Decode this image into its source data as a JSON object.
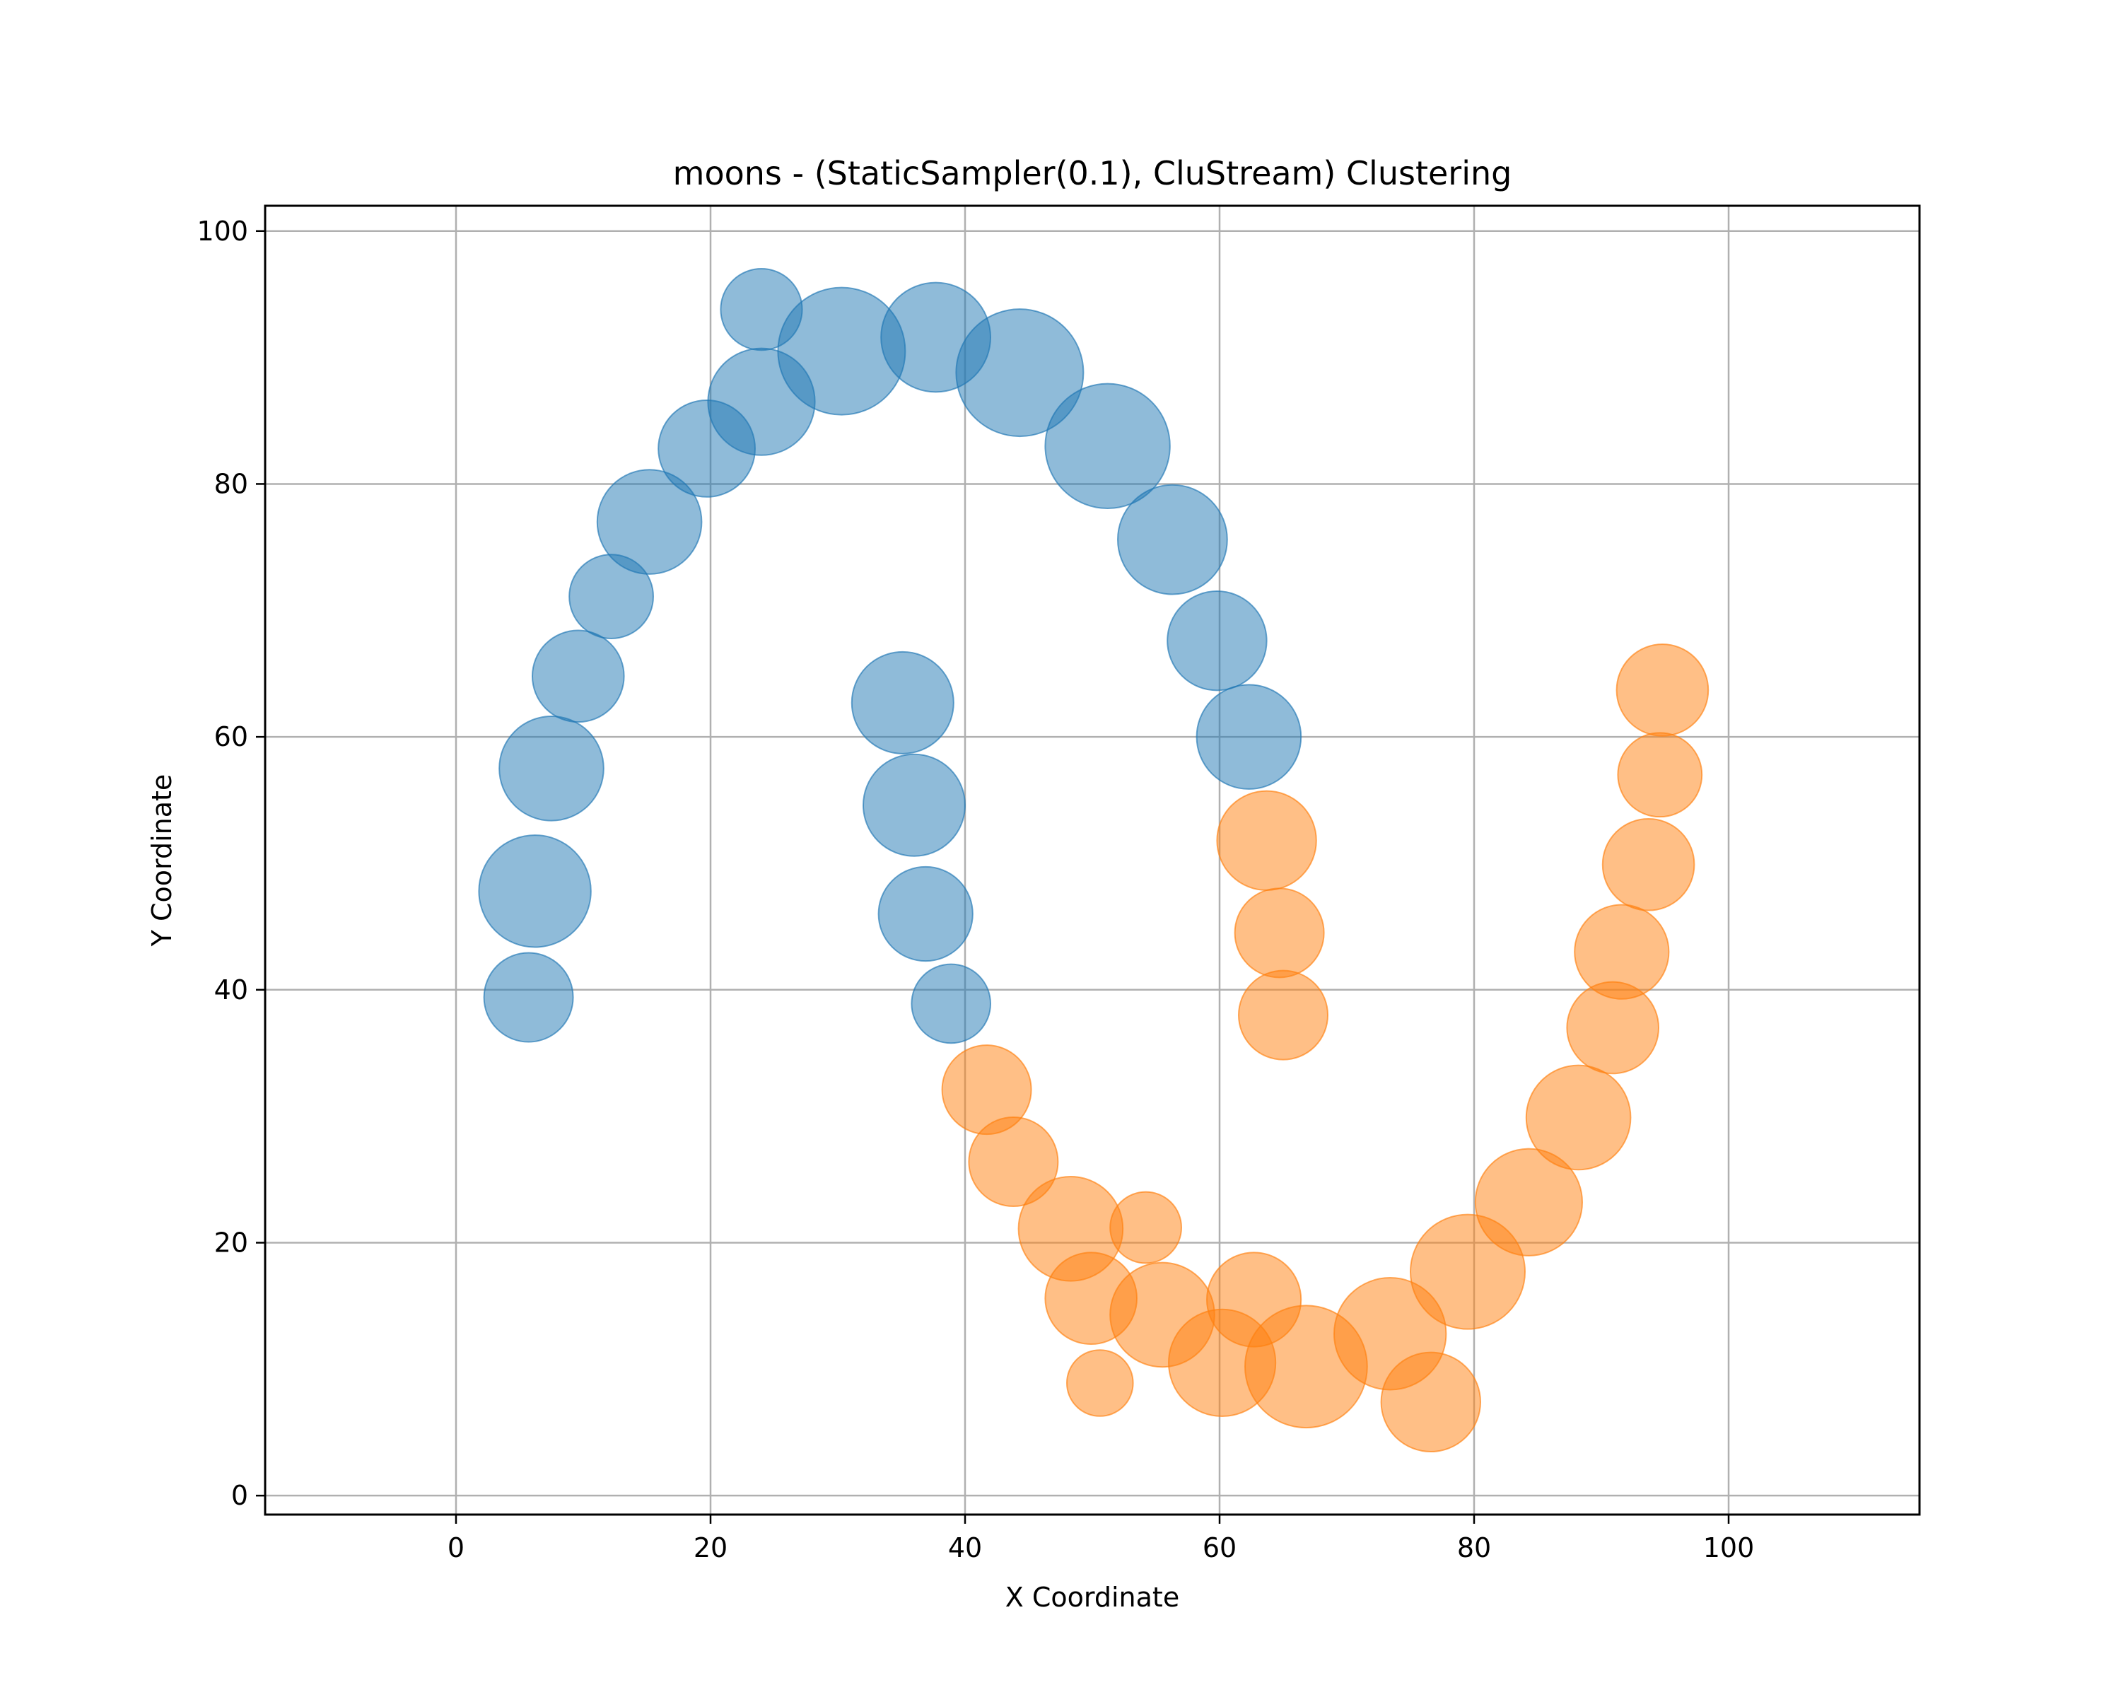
{
  "chart_data": {
    "type": "scatter",
    "title": "moons - (StaticSampler(0.1), CluStream) Clustering",
    "xlabel": "X Coordinate",
    "ylabel": "Y Coordinate",
    "xlim": [
      -15,
      115
    ],
    "ylim": [
      -1.5,
      102
    ],
    "xticks": [
      0,
      20,
      40,
      60,
      80,
      100
    ],
    "yticks": [
      0,
      20,
      40,
      60,
      80,
      100
    ],
    "grid": true,
    "legend": "none",
    "series": [
      {
        "color": "#1f77b4",
        "alpha": 0.5,
        "points": [
          {
            "x": 5.7,
            "y": 39.4,
            "r": 3.5
          },
          {
            "x": 6.2,
            "y": 47.8,
            "r": 4.4
          },
          {
            "x": 7.5,
            "y": 57.5,
            "r": 4.1
          },
          {
            "x": 9.6,
            "y": 64.8,
            "r": 3.6
          },
          {
            "x": 12.2,
            "y": 71.1,
            "r": 3.3
          },
          {
            "x": 15.2,
            "y": 77.0,
            "r": 4.1
          },
          {
            "x": 19.7,
            "y": 82.8,
            "r": 3.8
          },
          {
            "x": 24.0,
            "y": 93.8,
            "r": 3.2
          },
          {
            "x": 24.0,
            "y": 86.5,
            "r": 4.2
          },
          {
            "x": 30.3,
            "y": 90.5,
            "r": 5.0
          },
          {
            "x": 37.7,
            "y": 91.6,
            "r": 4.3
          },
          {
            "x": 44.3,
            "y": 88.8,
            "r": 5.0
          },
          {
            "x": 51.2,
            "y": 83.0,
            "r": 4.9
          },
          {
            "x": 56.3,
            "y": 75.6,
            "r": 4.3
          },
          {
            "x": 59.8,
            "y": 67.6,
            "r": 3.9
          },
          {
            "x": 62.3,
            "y": 60.0,
            "r": 4.1
          },
          {
            "x": 35.1,
            "y": 62.7,
            "r": 4.0
          },
          {
            "x": 36.0,
            "y": 54.6,
            "r": 4.0
          },
          {
            "x": 36.9,
            "y": 46.0,
            "r": 3.7
          },
          {
            "x": 38.9,
            "y": 38.9,
            "r": 3.1
          }
        ]
      },
      {
        "color": "#ff7f0e",
        "alpha": 0.5,
        "points": [
          {
            "x": 63.7,
            "y": 51.8,
            "r": 3.9
          },
          {
            "x": 64.7,
            "y": 44.5,
            "r": 3.5
          },
          {
            "x": 65.0,
            "y": 38.0,
            "r": 3.5
          },
          {
            "x": 41.7,
            "y": 32.1,
            "r": 3.5
          },
          {
            "x": 43.8,
            "y": 26.4,
            "r": 3.5
          },
          {
            "x": 48.3,
            "y": 21.1,
            "r": 4.1
          },
          {
            "x": 54.2,
            "y": 21.2,
            "r": 2.8
          },
          {
            "x": 49.9,
            "y": 15.6,
            "r": 3.6
          },
          {
            "x": 55.5,
            "y": 14.3,
            "r": 4.1
          },
          {
            "x": 50.6,
            "y": 8.9,
            "r": 2.6
          },
          {
            "x": 60.2,
            "y": 10.5,
            "r": 4.2
          },
          {
            "x": 62.7,
            "y": 15.5,
            "r": 3.7
          },
          {
            "x": 66.8,
            "y": 10.2,
            "r": 4.8
          },
          {
            "x": 73.4,
            "y": 12.8,
            "r": 4.4
          },
          {
            "x": 76.6,
            "y": 7.4,
            "r": 3.9
          },
          {
            "x": 79.5,
            "y": 17.7,
            "r": 4.5
          },
          {
            "x": 84.3,
            "y": 23.2,
            "r": 4.2
          },
          {
            "x": 88.2,
            "y": 29.9,
            "r": 4.1
          },
          {
            "x": 90.9,
            "y": 37.0,
            "r": 3.6
          },
          {
            "x": 91.6,
            "y": 43.0,
            "r": 3.7
          },
          {
            "x": 93.7,
            "y": 49.9,
            "r": 3.6
          },
          {
            "x": 94.6,
            "y": 57.0,
            "r": 3.3
          },
          {
            "x": 94.8,
            "y": 63.7,
            "r": 3.6
          }
        ]
      }
    ]
  }
}
